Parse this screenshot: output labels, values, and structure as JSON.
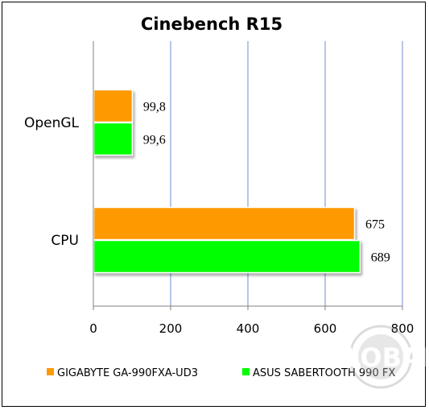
{
  "chart_data": {
    "type": "bar",
    "orientation": "horizontal",
    "title": "Cinebench R15",
    "categories": [
      "OpenGL",
      "CPU"
    ],
    "series": [
      {
        "name": "GIGABYTE GA-990FXA-UD3",
        "color": "#ff9900",
        "values": [
          99.8,
          675
        ],
        "labels": [
          "99,8",
          "675"
        ]
      },
      {
        "name": "ASUS SABERTOOTH 990 FX",
        "color": "#00ff00",
        "values": [
          99.6,
          689
        ],
        "labels": [
          "99,6",
          "689"
        ]
      }
    ],
    "xlim": [
      0,
      800
    ],
    "xticks": [
      0,
      200,
      400,
      600,
      800
    ],
    "xtick_labels": [
      "0",
      "200",
      "400",
      "600",
      "800"
    ],
    "xlabel": "",
    "ylabel": "",
    "grid": "vertical",
    "grid_color": "#8fa8d8",
    "legend_position": "bottom"
  },
  "watermark": {
    "text": "GLOBAL"
  }
}
